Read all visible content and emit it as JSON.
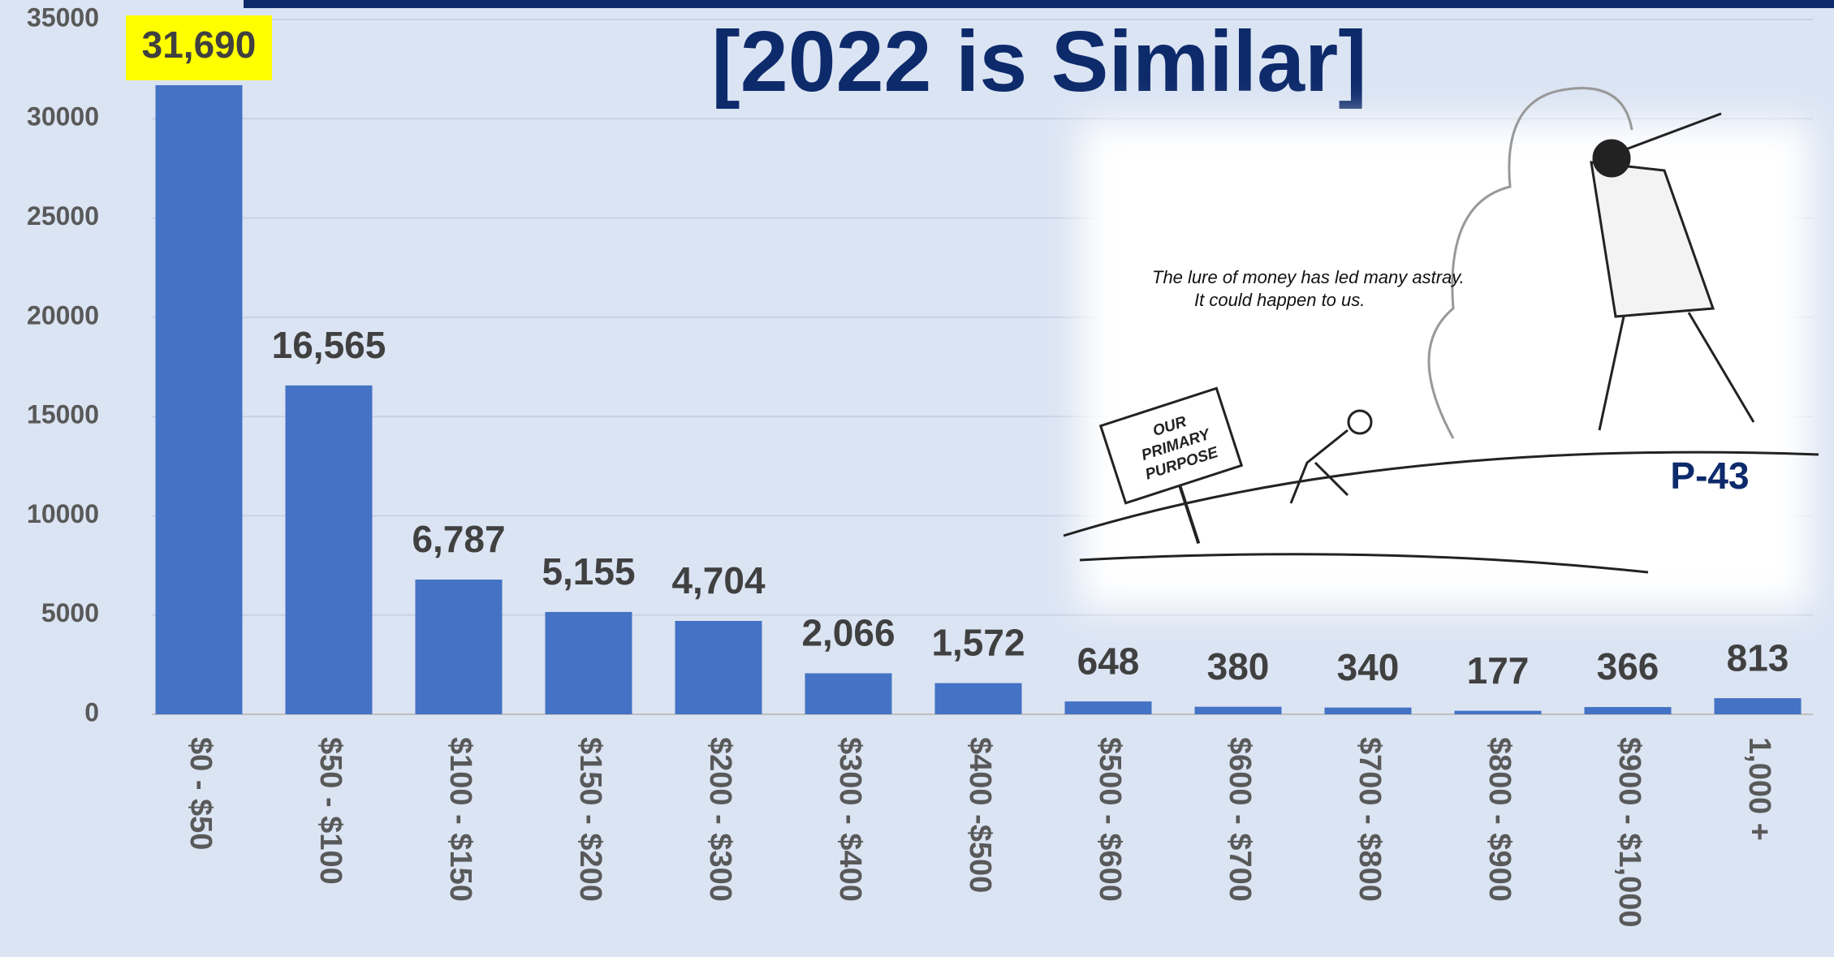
{
  "chart_data": {
    "type": "bar",
    "title": "[2022 is Similar]",
    "categories": [
      "$0 - $50",
      "$50 - $100",
      "$100 - $150",
      "$150 - $200",
      "$200 - $300",
      "$300 - $400",
      "$400 -$500",
      "$500 - $600",
      "$600 - $700",
      "$700 - $800",
      "$800 - $900",
      "$900 - $1,000",
      "1,000 +"
    ],
    "values": [
      31690,
      16565,
      6787,
      5155,
      4704,
      2066,
      1572,
      648,
      380,
      340,
      177,
      366,
      813
    ],
    "value_labels": [
      "31,690",
      "16,565",
      "6,787",
      "5,155",
      "4,704",
      "2,066",
      "1,572",
      "648",
      "380",
      "340",
      "177",
      "366",
      "813"
    ],
    "color": "#4472c4",
    "ylim": [
      0,
      35000
    ],
    "yticks": [
      0,
      5000,
      10000,
      15000,
      20000,
      25000,
      30000,
      35000
    ],
    "grid": true,
    "highlight_index": 0,
    "highlight_color": "#ffff00",
    "cartoon": {
      "caption": [
        "The lure of money has led many astray.",
        "It could happen to us."
      ],
      "sign": [
        "OUR",
        "PRIMARY",
        "PURPOSE"
      ],
      "page": "P-43"
    }
  }
}
